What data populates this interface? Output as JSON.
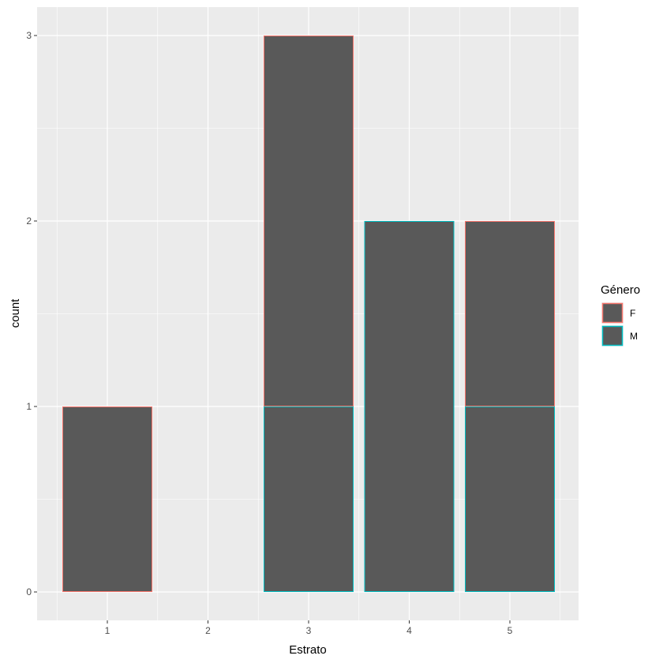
{
  "chart_data": {
    "type": "bar",
    "stacked": true,
    "categories": [
      "1",
      "2",
      "3",
      "4",
      "5"
    ],
    "series": [
      {
        "name": "F",
        "values": [
          1,
          0,
          2,
          0,
          1
        ]
      },
      {
        "name": "M",
        "values": [
          0,
          0,
          1,
          2,
          1
        ]
      }
    ],
    "xlabel": "Estrato",
    "ylabel": "count",
    "ylim": [
      0,
      3
    ],
    "yticks": [
      "0",
      "1",
      "2",
      "3"
    ],
    "grid": true,
    "legend": {
      "title": "Género",
      "placement": "right",
      "entries": [
        "F",
        "M"
      ]
    },
    "colors": {
      "panel_background": "#EBEBEB",
      "grid": "#FFFFFF",
      "bar_fill": "#595959",
      "F": "#F8766D",
      "M": "#00BFC4",
      "tick_text": "#4D4D4D",
      "tick_mark": "#333333"
    }
  }
}
